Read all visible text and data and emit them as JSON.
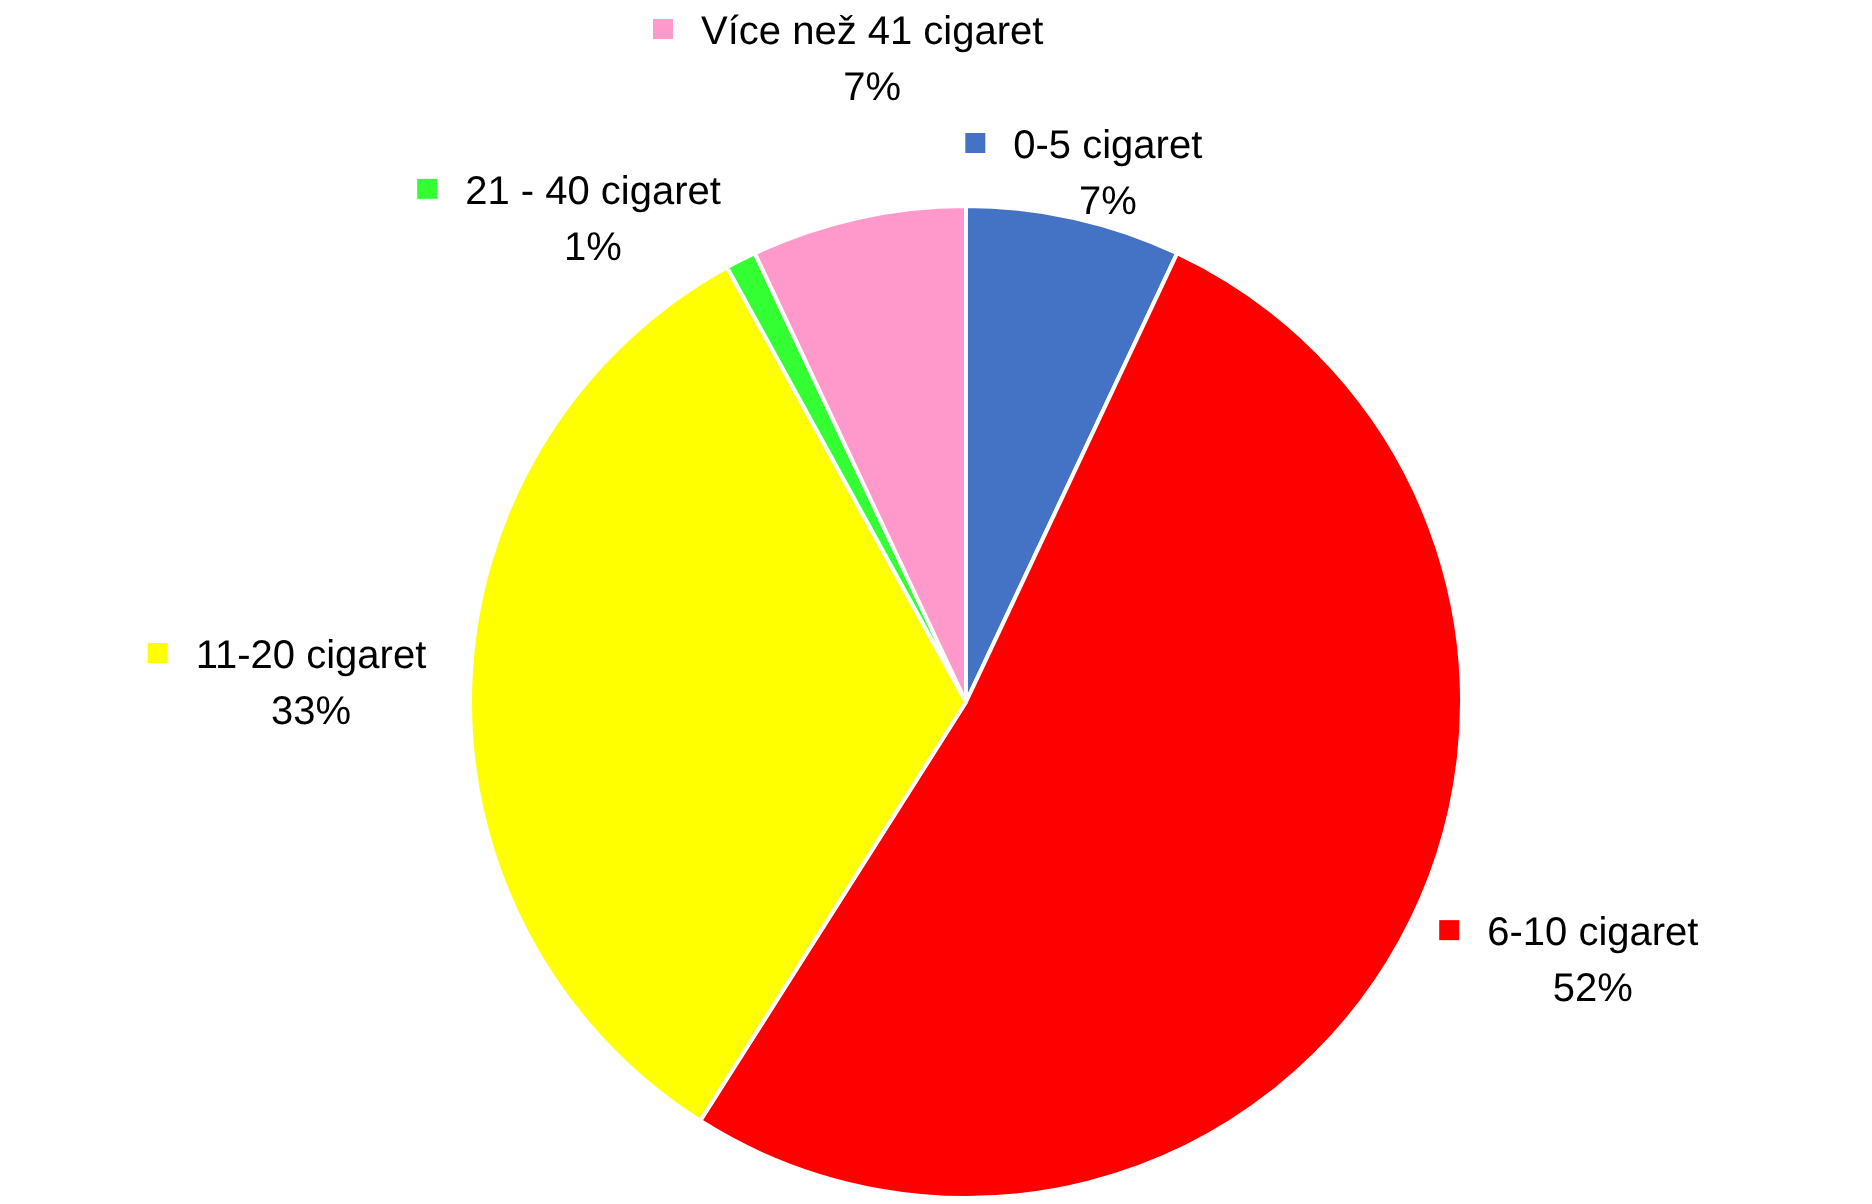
{
  "chart_data": {
    "type": "pie",
    "categories": [
      "0-5 cigaret",
      "6-10 cigaret",
      "11-20 cigaret",
      "21 - 40 cigaret",
      "Více než 41 cigaret"
    ],
    "values": [
      7,
      52,
      33,
      1,
      7
    ],
    "value_labels": [
      "7%",
      "52%",
      "33%",
      "1%",
      "7%"
    ],
    "colors": [
      "#4472c4",
      "#ff0000",
      "#ffff00",
      "#33ff33",
      "#ff99cc"
    ],
    "legend": "top"
  }
}
